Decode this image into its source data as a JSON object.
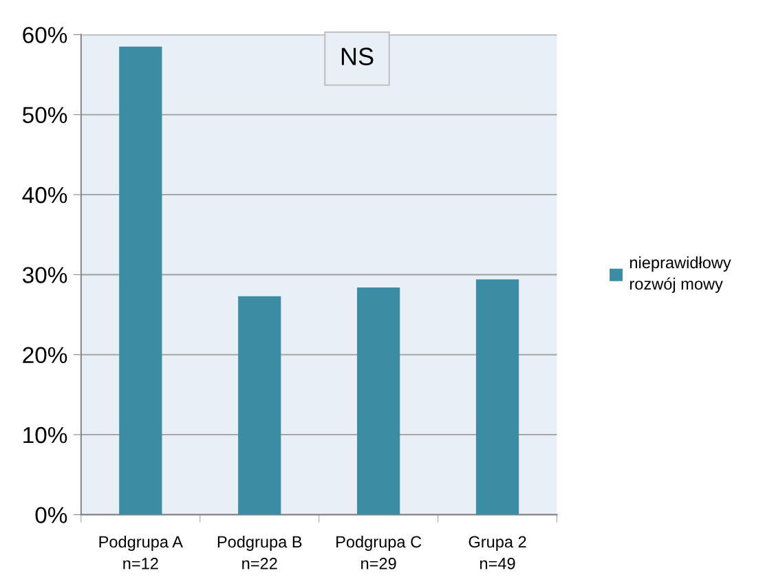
{
  "chart_data": {
    "type": "bar",
    "categories": [
      "Podgrupa A\nn=12",
      "Podgrupa B\nn=22",
      "Podgrupa C\nn=29",
      "Grupa 2\nn=49"
    ],
    "series": [
      {
        "name": "nieprawidłowy\nrozwój mowy",
        "color": "#3c8ca3",
        "values": [
          58.5,
          27.3,
          28.4,
          29.4
        ]
      }
    ],
    "ylim": [
      0,
      60
    ],
    "yticks": [
      {
        "value": 0,
        "label": "0%"
      },
      {
        "value": 10,
        "label": "10%"
      },
      {
        "value": 20,
        "label": "20%"
      },
      {
        "value": 30,
        "label": "30%"
      },
      {
        "value": 40,
        "label": "40%"
      },
      {
        "value": 50,
        "label": "50%"
      },
      {
        "value": 60,
        "label": "60%"
      }
    ],
    "grid": "y",
    "legend": "right",
    "annotations": [
      "NS"
    ]
  }
}
